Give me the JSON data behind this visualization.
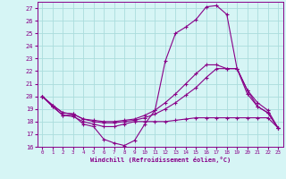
{
  "xlabel": "Windchill (Refroidissement éolien,°C)",
  "background_color": "#d6f5f5",
  "grid_color": "#aadddd",
  "line_color": "#880088",
  "hours": [
    0,
    1,
    2,
    3,
    4,
    5,
    6,
    7,
    8,
    9,
    10,
    11,
    12,
    13,
    14,
    15,
    16,
    17,
    18,
    19,
    20,
    21,
    22,
    23
  ],
  "line1": [
    20.0,
    19.2,
    18.5,
    18.5,
    17.8,
    17.6,
    16.6,
    16.3,
    16.1,
    16.5,
    17.8,
    18.9,
    22.8,
    25.0,
    25.5,
    26.1,
    27.1,
    27.2,
    26.5,
    22.2,
    20.2,
    19.2,
    18.7,
    17.5
  ],
  "line2": [
    20.0,
    19.2,
    18.5,
    18.4,
    18.0,
    17.8,
    17.6,
    17.6,
    17.8,
    18.0,
    18.0,
    18.0,
    18.0,
    18.1,
    18.2,
    18.3,
    18.3,
    18.3,
    18.3,
    18.3,
    18.3,
    18.3,
    18.3,
    17.5
  ],
  "line3": [
    20.0,
    19.3,
    18.7,
    18.6,
    18.2,
    18.0,
    17.9,
    17.9,
    18.0,
    18.1,
    18.3,
    18.6,
    19.0,
    19.5,
    20.1,
    20.7,
    21.5,
    22.2,
    22.2,
    22.2,
    20.5,
    19.2,
    18.7,
    17.5
  ],
  "line4": [
    20.0,
    19.3,
    18.7,
    18.6,
    18.2,
    18.1,
    18.0,
    18.0,
    18.1,
    18.2,
    18.5,
    18.9,
    19.5,
    20.2,
    21.0,
    21.8,
    22.5,
    22.5,
    22.2,
    22.2,
    20.5,
    19.5,
    18.9,
    17.5
  ],
  "ylim": [
    16,
    27.5
  ],
  "xlim": [
    -0.5,
    23.5
  ],
  "yticks": [
    16,
    17,
    18,
    19,
    20,
    21,
    22,
    23,
    24,
    25,
    26,
    27
  ],
  "xticks": [
    0,
    1,
    2,
    3,
    4,
    5,
    6,
    7,
    8,
    9,
    10,
    11,
    12,
    13,
    14,
    15,
    16,
    17,
    18,
    19,
    20,
    21,
    22,
    23
  ]
}
